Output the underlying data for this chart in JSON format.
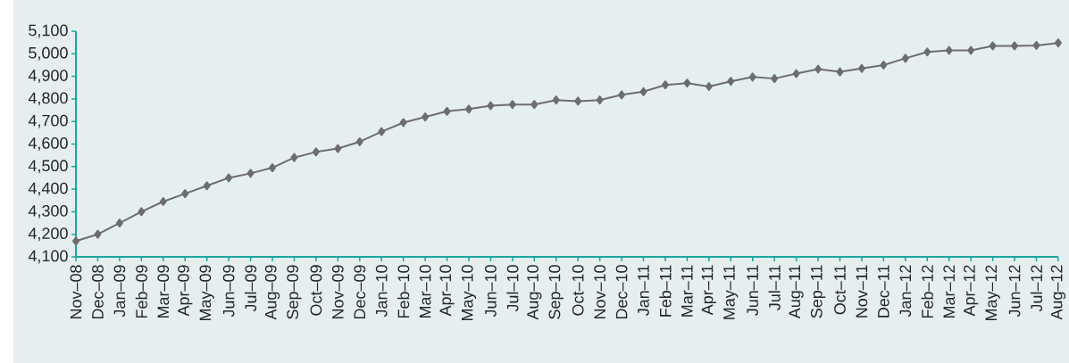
{
  "chart_data": {
    "type": "line",
    "categories": [
      "Nov–08",
      "Dec–08",
      "Jan–09",
      "Feb–09",
      "Mar–09",
      "Apr–09",
      "May–09",
      "Jun–09",
      "Jul–09",
      "Aug–09",
      "Sep–09",
      "Oct–09",
      "Nov–09",
      "Dec–09",
      "Jan–10",
      "Feb–10",
      "Mar–10",
      "Apr–10",
      "May–10",
      "Jun–10",
      "Jul–10",
      "Aug–10",
      "Sep–10",
      "Oct–10",
      "Nov–10",
      "Dec–10",
      "Jan–11",
      "Feb–11",
      "Mar–11",
      "Apr–11",
      "May–11",
      "Jun–11",
      "Jul–11",
      "Aug–11",
      "Sep–11",
      "Oct–11",
      "Nov–11",
      "Dec–11",
      "Jan–12",
      "Feb–12",
      "Mar–12",
      "Apr–12",
      "May–12",
      "Jun–12",
      "Jul–12",
      "Aug–12"
    ],
    "values": [
      4170,
      4200,
      4250,
      4300,
      4345,
      4380,
      4415,
      4450,
      4470,
      4495,
      4540,
      4565,
      4580,
      4610,
      4655,
      4695,
      4720,
      4745,
      4755,
      4770,
      4775,
      4775,
      4795,
      4790,
      4795,
      4818,
      4832,
      4862,
      4870,
      4855,
      4878,
      4897,
      4890,
      4912,
      4932,
      4920,
      4935,
      4950,
      4980,
      5008,
      5015,
      5015,
      5035,
      5035,
      5037,
      5048
    ],
    "color": "#6d6d6d",
    "marker": "diamond",
    "line_style": "solid",
    "grid": false,
    "ylim": [
      4100,
      5100
    ],
    "yticks": [
      {
        "value": 4100,
        "label": "4,100"
      },
      {
        "value": 4200,
        "label": "4,200"
      },
      {
        "value": 4300,
        "label": "4,300"
      },
      {
        "value": 4400,
        "label": "4,400"
      },
      {
        "value": 4500,
        "label": "4,500"
      },
      {
        "value": 4600,
        "label": "4,600"
      },
      {
        "value": 4700,
        "label": "4,700"
      },
      {
        "value": 4800,
        "label": "4,800"
      },
      {
        "value": 4900,
        "label": "4,900"
      },
      {
        "value": 5000,
        "label": "5,000"
      },
      {
        "value": 5100,
        "label": "5,100"
      }
    ]
  }
}
